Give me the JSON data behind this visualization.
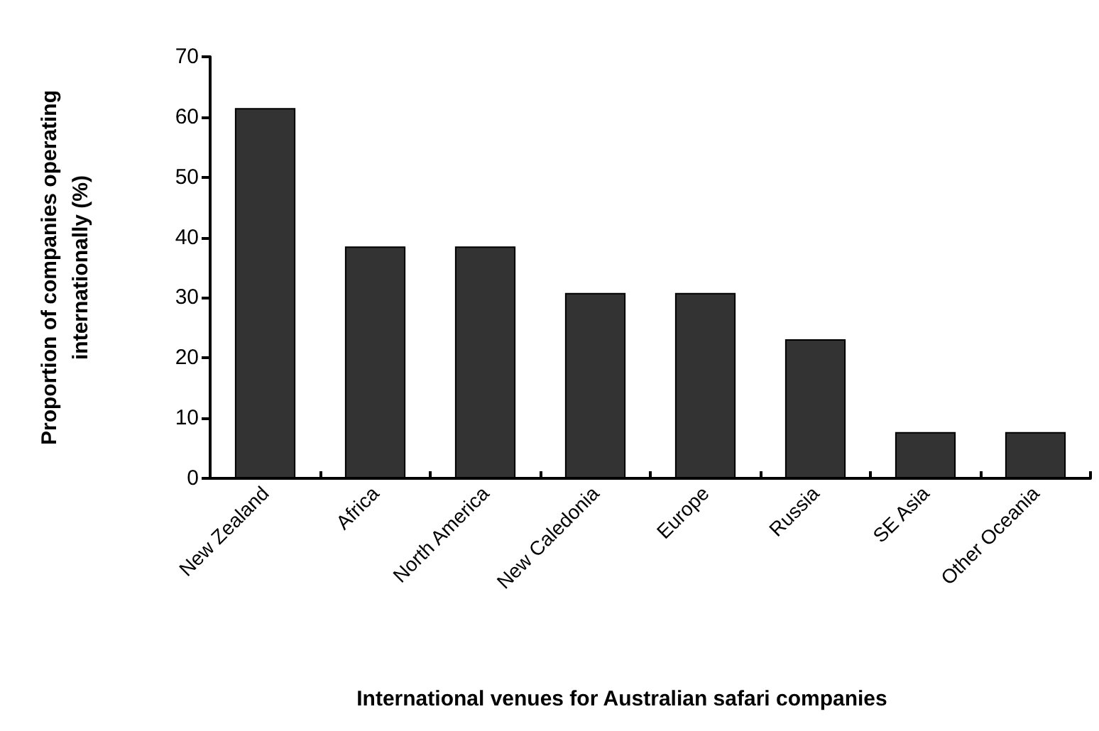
{
  "chart_data": {
    "type": "bar",
    "categories": [
      "New Zealand",
      "Africa",
      "North America",
      "New Caledonia",
      "Europe",
      "Russia",
      "SE Asia",
      "Other Oceania"
    ],
    "values": [
      61.5,
      38.5,
      38.5,
      30.8,
      30.8,
      23.1,
      7.7,
      7.7
    ],
    "color": "#333333",
    "xlabel": "International venues for Australian safari companies",
    "ylabel": "Proportion of companies operating internationally (%)",
    "ylim": [
      0,
      70
    ],
    "yticks": [
      0,
      10,
      20,
      30,
      40,
      50,
      60,
      70
    ],
    "grid": false
  }
}
